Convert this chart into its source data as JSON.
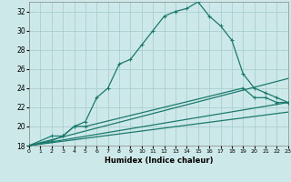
{
  "xlabel": "Humidex (Indice chaleur)",
  "bg_color": "#cde8e8",
  "line_color": "#1a7a6e",
  "grid_color": "#aacece",
  "xlim": [
    0,
    23
  ],
  "ylim": [
    18,
    33
  ],
  "xticks": [
    0,
    1,
    2,
    3,
    4,
    5,
    6,
    7,
    8,
    9,
    10,
    11,
    12,
    13,
    14,
    15,
    16,
    17,
    18,
    19,
    20,
    21,
    22,
    23
  ],
  "yticks": [
    18,
    20,
    22,
    24,
    26,
    28,
    30,
    32
  ],
  "line1_x": [
    0,
    2,
    3,
    4,
    5,
    6,
    7,
    8,
    9,
    10,
    11,
    12,
    13,
    14,
    15,
    16,
    17,
    18,
    19,
    20,
    21,
    22,
    23
  ],
  "line1_y": [
    18,
    19,
    19,
    20,
    20.5,
    23,
    24,
    26.5,
    27,
    28.5,
    30,
    31.5,
    32,
    32.3,
    33,
    31.5,
    30.5,
    29,
    25.5,
    24,
    23.5,
    23,
    22.5
  ],
  "line2_x": [
    0,
    2,
    3,
    4,
    5,
    19,
    20,
    21,
    22,
    23
  ],
  "line2_y": [
    18,
    18.5,
    19,
    20,
    20,
    24,
    23,
    23,
    22.5,
    22.5
  ],
  "line3_x": [
    0,
    23
  ],
  "line3_y": [
    18,
    25
  ],
  "line4_x": [
    0,
    23
  ],
  "line4_y": [
    18,
    22.5
  ],
  "line5_x": [
    0,
    23
  ],
  "line5_y": [
    18,
    21.5
  ]
}
